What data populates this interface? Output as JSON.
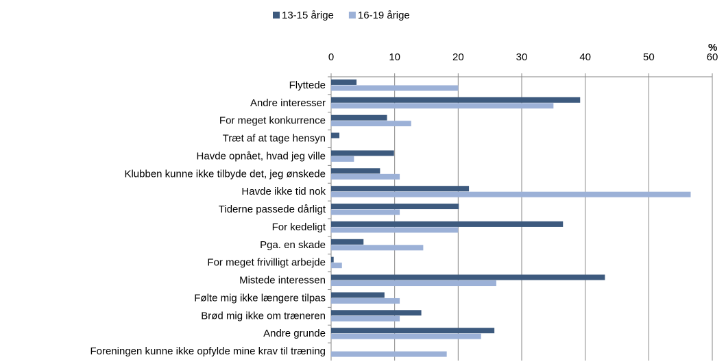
{
  "chart_data": {
    "type": "hbar",
    "unit": "%",
    "categories": [
      "Flyttede",
      "Andre interesser",
      "For meget konkurrence",
      "Træt af at tage hensyn",
      "Havde opnået, hvad jeg ville",
      "Klubben kunne ikke tilbyde det, jeg ønskede",
      "Havde ikke tid nok",
      "Tiderne passede dårligt",
      "For kedeligt",
      "Pga. en skade",
      "For meget frivilligt arbejde",
      "Mistede interessen",
      "Følte mig ikke længere tilpas",
      "Brød mig ikke om træneren",
      "Andre grunde",
      "Foreningen kunne ikke opfylde mine krav til træning"
    ],
    "series": [
      {
        "name": "13-15 årige",
        "color": "#3d5a7e",
        "values": [
          4.0,
          39.2,
          8.8,
          1.3,
          9.9,
          7.7,
          21.7,
          20.1,
          36.5,
          5.1,
          0.4,
          43.1,
          8.4,
          14.2,
          25.7,
          0
        ]
      },
      {
        "name": "16-19 årige",
        "color": "#9cb1d7",
        "values": [
          20.0,
          35.0,
          12.6,
          0,
          3.6,
          10.8,
          56.6,
          10.8,
          20.0,
          14.5,
          1.7,
          26.0,
          10.8,
          10.8,
          23.6,
          18.2
        ]
      }
    ],
    "xlim": [
      0,
      60
    ],
    "xticks": [
      0,
      10,
      20,
      30,
      40,
      50,
      60
    ],
    "grid": true,
    "legend": "top"
  }
}
